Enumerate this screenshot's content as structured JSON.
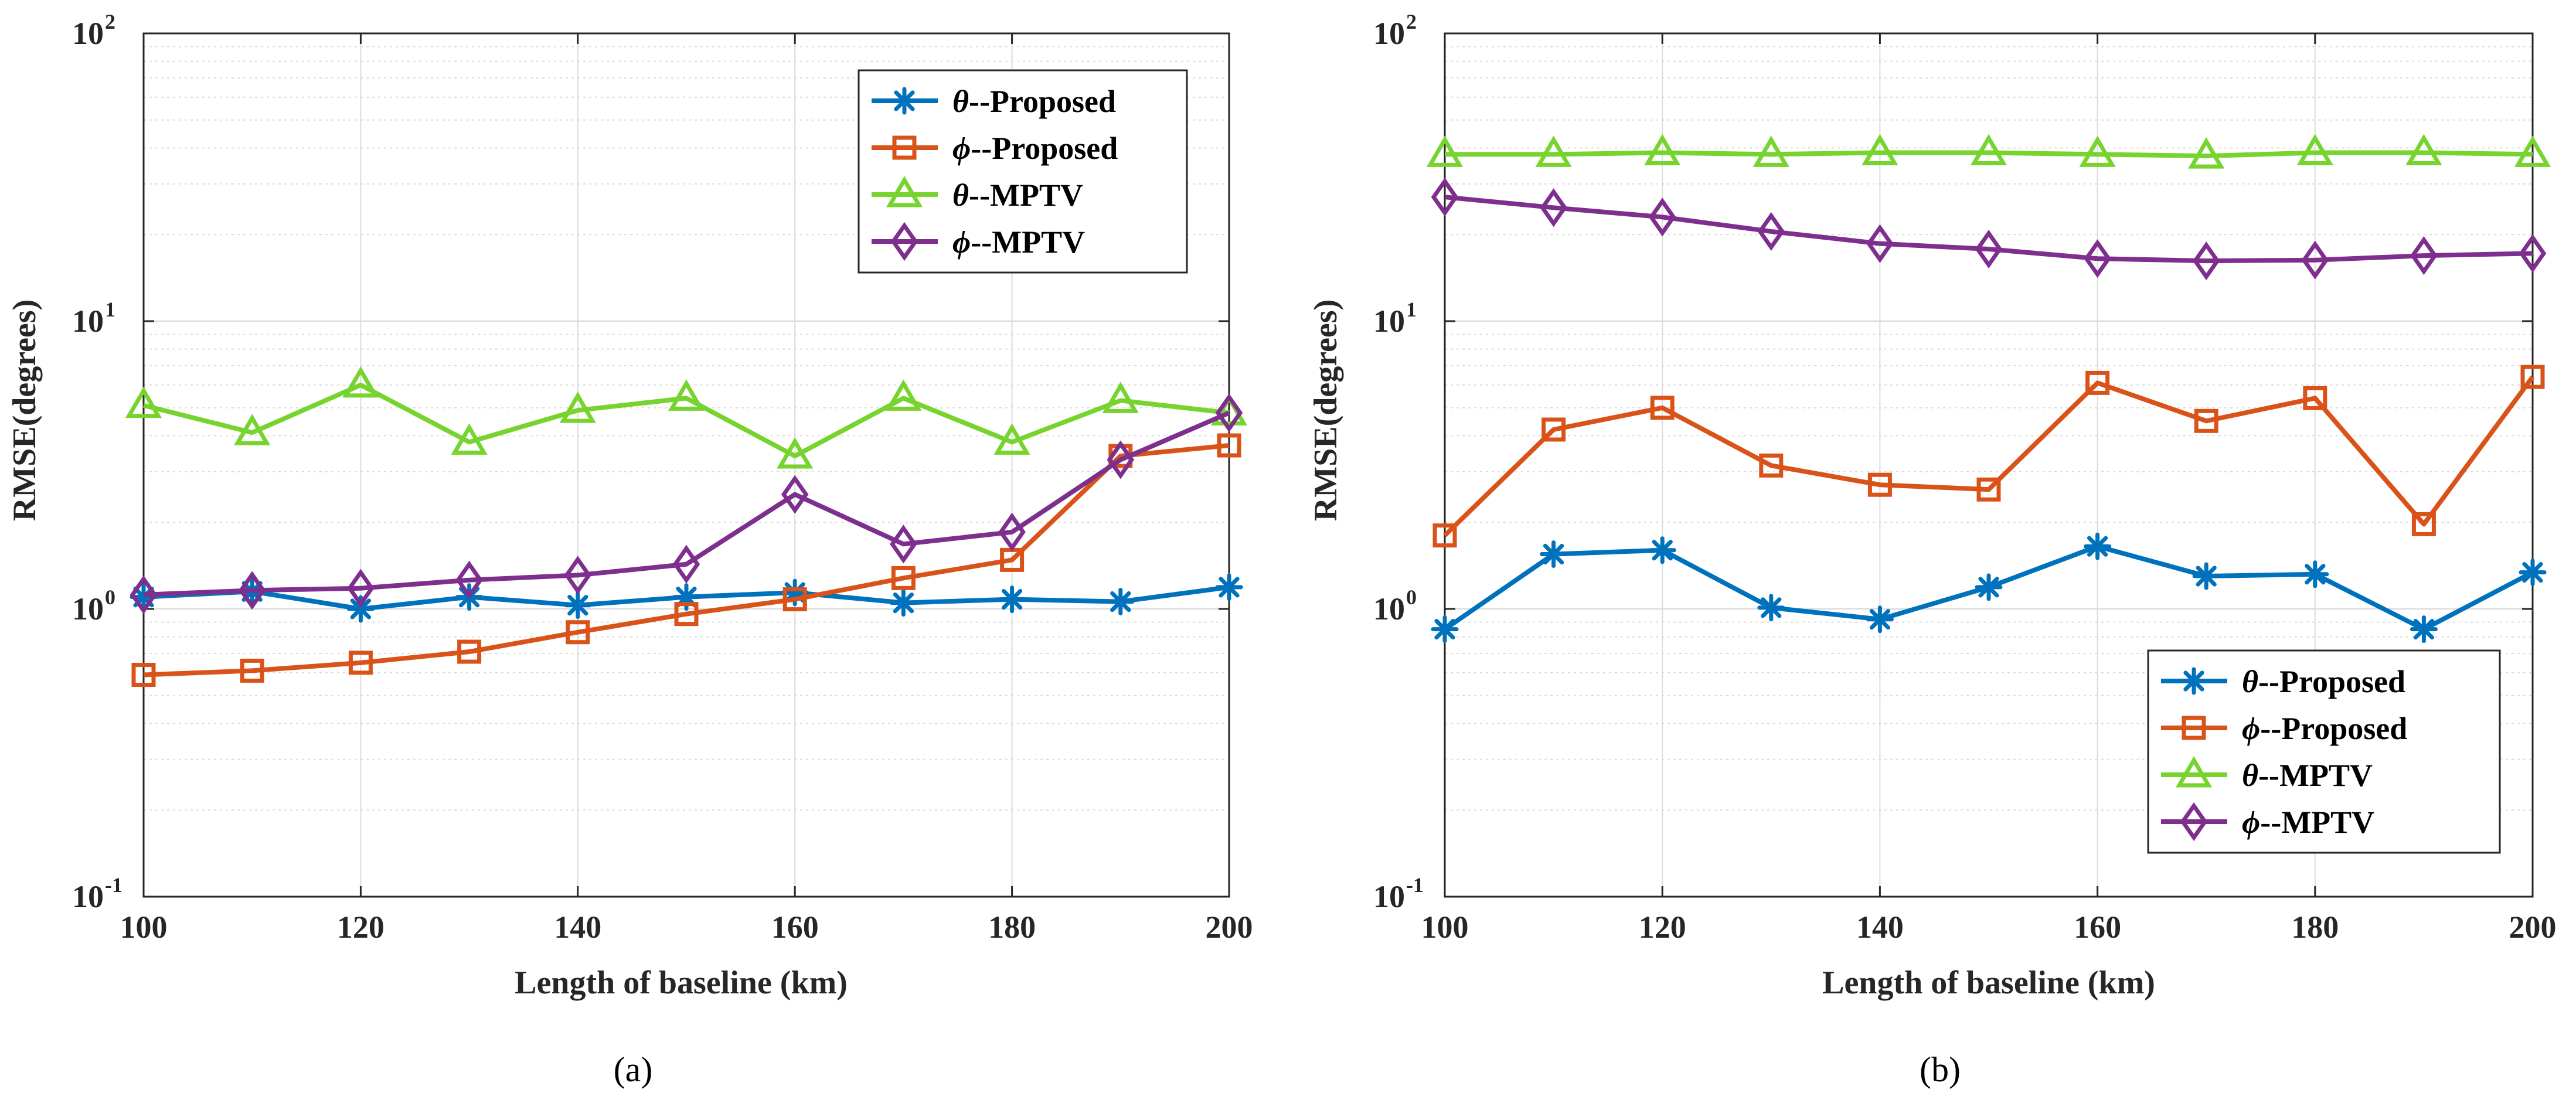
{
  "figure": {
    "colors": {
      "theta_proposed": "#0072BD",
      "phi_proposed": "#D95319",
      "theta_mptv": "#77D42E",
      "phi_mptv": "#7E2F8E",
      "grid": "#DCDCDC",
      "axis": "#262626"
    }
  },
  "chart_data": [
    {
      "type": "line",
      "panel_label": "(a)",
      "xlabel": "Length of baseline (km)",
      "ylabel": "RMSE(degrees)",
      "yscale": "log",
      "xlim": [
        100,
        200
      ],
      "ylim": [
        0.1,
        100
      ],
      "x_ticks": [
        "100",
        "120",
        "140",
        "160",
        "180",
        "200"
      ],
      "y_ticks": [
        {
          "base": "10",
          "exp": "-1"
        },
        {
          "base": "10",
          "exp": "0"
        },
        {
          "base": "10",
          "exp": "1"
        },
        {
          "base": "10",
          "exp": "2"
        }
      ],
      "grid": true,
      "legend_position": "top-right",
      "x": [
        100,
        110,
        120,
        130,
        140,
        150,
        160,
        170,
        180,
        190,
        200
      ],
      "series": [
        {
          "key": "theta_proposed",
          "symbol": "θ",
          "suffix": "--Proposed",
          "marker": "asterisk",
          "values": [
            1.1,
            1.15,
            1.0,
            1.1,
            1.03,
            1.1,
            1.14,
            1.05,
            1.08,
            1.06,
            1.19
          ]
        },
        {
          "key": "phi_proposed",
          "symbol": "ϕ",
          "suffix": "--Proposed",
          "marker": "square",
          "values": [
            0.59,
            0.61,
            0.65,
            0.71,
            0.83,
            0.96,
            1.08,
            1.28,
            1.48,
            3.4,
            3.7
          ]
        },
        {
          "key": "theta_mptv",
          "symbol": "θ",
          "suffix": "--MPTV",
          "marker": "triangle",
          "values": [
            5.1,
            4.1,
            6.0,
            3.8,
            4.9,
            5.4,
            3.4,
            5.4,
            3.8,
            5.3,
            4.8
          ]
        },
        {
          "key": "phi_mptv",
          "symbol": "ϕ",
          "suffix": "--MPTV",
          "marker": "diamond",
          "values": [
            1.12,
            1.16,
            1.18,
            1.26,
            1.31,
            1.43,
            2.5,
            1.68,
            1.85,
            3.3,
            4.8
          ]
        }
      ]
    },
    {
      "type": "line",
      "panel_label": "(b)",
      "xlabel": "Length of baseline (km)",
      "ylabel": "RMSE(degrees)",
      "yscale": "log",
      "xlim": [
        100,
        200
      ],
      "ylim": [
        0.1,
        100
      ],
      "x_ticks": [
        "100",
        "120",
        "140",
        "160",
        "180",
        "200"
      ],
      "y_ticks": [
        {
          "base": "10",
          "exp": "-1"
        },
        {
          "base": "10",
          "exp": "0"
        },
        {
          "base": "10",
          "exp": "1"
        },
        {
          "base": "10",
          "exp": "2"
        }
      ],
      "grid": true,
      "legend_position": "bottom-right",
      "x": [
        100,
        110,
        120,
        130,
        140,
        150,
        160,
        170,
        180,
        190,
        200
      ],
      "series": [
        {
          "key": "theta_proposed",
          "symbol": "θ",
          "suffix": "--Proposed",
          "marker": "asterisk",
          "values": [
            0.85,
            1.55,
            1.6,
            1.01,
            0.92,
            1.19,
            1.65,
            1.3,
            1.32,
            0.85,
            1.34
          ]
        },
        {
          "key": "phi_proposed",
          "symbol": "ϕ",
          "suffix": "--Proposed",
          "marker": "square",
          "values": [
            1.8,
            4.2,
            5.0,
            3.15,
            2.7,
            2.6,
            6.1,
            4.5,
            5.4,
            1.97,
            6.4
          ]
        },
        {
          "key": "theta_mptv",
          "symbol": "θ",
          "suffix": "--MPTV",
          "marker": "triangle",
          "values": [
            38.0,
            38.0,
            38.5,
            38.0,
            38.5,
            38.5,
            38.0,
            37.5,
            38.5,
            38.5,
            38.0
          ]
        },
        {
          "key": "phi_mptv",
          "symbol": "ϕ",
          "suffix": "--MPTV",
          "marker": "diamond",
          "values": [
            27.0,
            24.8,
            23.0,
            20.5,
            18.6,
            17.8,
            16.5,
            16.2,
            16.3,
            16.9,
            17.2
          ]
        }
      ]
    }
  ]
}
